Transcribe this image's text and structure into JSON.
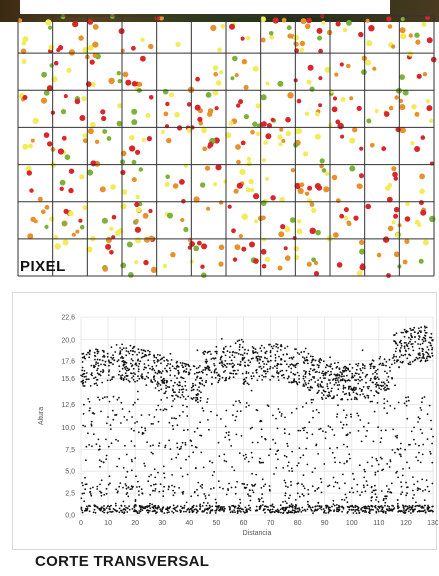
{
  "pixel_panel": {
    "label": "PIXEL",
    "grid_columns": 12,
    "grid_rows": 7,
    "colors": {
      "red": "#d8262b",
      "orange": "#e8902c",
      "yellow": "#f2ec5a",
      "green": "#7ab23a",
      "grid": "#333333"
    }
  },
  "section_title": "CORTE TRANSVERSAL",
  "chart_data": {
    "type": "scatter",
    "xlabel": "Distancia",
    "ylabel": "Altura",
    "xlim": [
      0,
      130
    ],
    "ylim": [
      0,
      22.6
    ],
    "x_ticks": [
      "0",
      "10",
      "20",
      "30",
      "40",
      "50",
      "60",
      "70",
      "80",
      "90",
      "100",
      "110",
      "120",
      "130"
    ],
    "y_ticks": [
      "0,0",
      "2,5",
      "5,0",
      "7,5",
      "10,0",
      "12,6",
      "15,6",
      "17,6",
      "20,0",
      "22,6"
    ],
    "y_tick_values": [
      0,
      2.5,
      5.0,
      7.5,
      10.0,
      12.6,
      15.6,
      17.6,
      20.0,
      22.6
    ],
    "grid": true,
    "point_color": "#111111",
    "series": [
      {
        "description_levels": {
          "ground_band": [
            0,
            1.2
          ],
          "canopy_band": [
            14,
            20.5
          ]
        },
        "sample_points": [
          [
            2,
            0.5
          ],
          [
            5,
            0.6
          ],
          [
            8,
            0.4
          ],
          [
            12,
            0.7
          ],
          [
            15,
            0.5
          ],
          [
            18,
            0.6
          ],
          [
            22,
            0.4
          ],
          [
            25,
            0.5
          ],
          [
            30,
            0.6
          ],
          [
            35,
            0.5
          ],
          [
            40,
            0.6
          ],
          [
            45,
            0.4
          ],
          [
            50,
            0.5
          ],
          [
            55,
            0.6
          ],
          [
            60,
            0.4
          ],
          [
            65,
            0.5
          ],
          [
            70,
            0.6
          ],
          [
            75,
            0.5
          ],
          [
            80,
            0.4
          ],
          [
            85,
            0.6
          ],
          [
            90,
            0.5
          ],
          [
            95,
            0.4
          ],
          [
            100,
            0.6
          ],
          [
            105,
            0.5
          ],
          [
            110,
            0.4
          ],
          [
            115,
            0.6
          ],
          [
            120,
            0.5
          ],
          [
            125,
            0.4
          ],
          [
            128,
            0.6
          ],
          [
            4,
            16.2
          ],
          [
            6,
            14.8
          ],
          [
            9,
            17.1
          ],
          [
            12,
            13.5
          ],
          [
            14,
            16.0
          ],
          [
            18,
            15.2
          ],
          [
            21,
            14.1
          ],
          [
            24,
            16.8
          ],
          [
            27,
            15.5
          ],
          [
            30,
            17.9
          ],
          [
            33,
            18.4
          ],
          [
            36,
            16.1
          ],
          [
            40,
            17.0
          ],
          [
            43,
            18.8
          ],
          [
            46,
            17.5
          ],
          [
            50,
            19.2
          ],
          [
            52,
            20.1
          ],
          [
            55,
            18.0
          ],
          [
            58,
            16.5
          ],
          [
            60,
            15.0
          ],
          [
            63,
            14.2
          ],
          [
            66,
            17.8
          ],
          [
            70,
            16.9
          ],
          [
            73,
            15.4
          ],
          [
            76,
            17.2
          ],
          [
            80,
            18.5
          ],
          [
            83,
            19.0
          ],
          [
            86,
            17.1
          ],
          [
            89,
            16.2
          ],
          [
            92,
            18.0
          ],
          [
            95,
            17.4
          ],
          [
            98,
            16.8
          ],
          [
            101,
            15.9
          ],
          [
            104,
            18.8
          ],
          [
            107,
            17.0
          ],
          [
            110,
            15.5
          ],
          [
            113,
            16.2
          ],
          [
            116,
            14.8
          ],
          [
            119,
            18.2
          ],
          [
            122,
            19.5
          ],
          [
            125,
            21.0
          ],
          [
            127,
            20.5
          ],
          [
            129,
            18.0
          ],
          [
            3,
            8.0
          ],
          [
            7,
            5.5
          ],
          [
            11,
            9.8
          ],
          [
            16,
            11.2
          ],
          [
            20,
            6.5
          ],
          [
            26,
            10.4
          ],
          [
            31,
            12.1
          ],
          [
            37,
            7.8
          ],
          [
            42,
            9.5
          ],
          [
            48,
            11.8
          ],
          [
            53,
            6.2
          ],
          [
            57,
            10.8
          ],
          [
            62,
            12.5
          ],
          [
            68,
            8.7
          ],
          [
            72,
            11.0
          ],
          [
            78,
            5.0
          ],
          [
            82,
            9.9
          ],
          [
            87,
            12.0
          ],
          [
            93,
            7.1
          ],
          [
            97,
            10.3
          ],
          [
            102,
            11.6
          ],
          [
            108,
            8.4
          ],
          [
            112,
            12.2
          ],
          [
            118,
            6.9
          ],
          [
            123,
            10.0
          ],
          [
            128,
            11.5
          ]
        ]
      }
    ]
  }
}
